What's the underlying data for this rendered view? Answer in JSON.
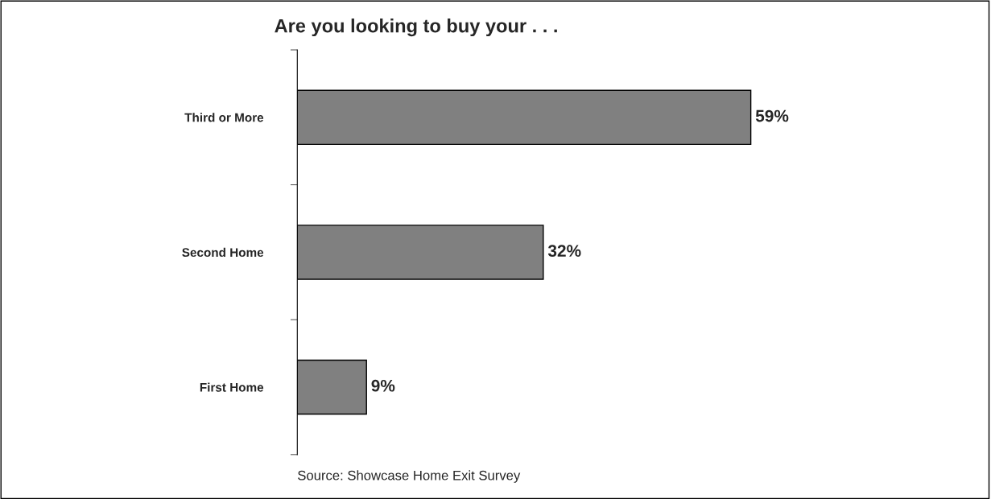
{
  "chart_data": {
    "type": "bar",
    "orientation": "horizontal",
    "title": "Are you looking to buy your . . .",
    "categories": [
      "Third or More",
      "Second Home",
      "First Home"
    ],
    "values": [
      59,
      32,
      9
    ],
    "value_labels": [
      "59%",
      "32%",
      "9%"
    ],
    "color": "#808080",
    "tick_labels": "y",
    "grid": false,
    "legend": false,
    "annotations": [
      "Source: Showcase Home Exit Survey"
    ]
  }
}
